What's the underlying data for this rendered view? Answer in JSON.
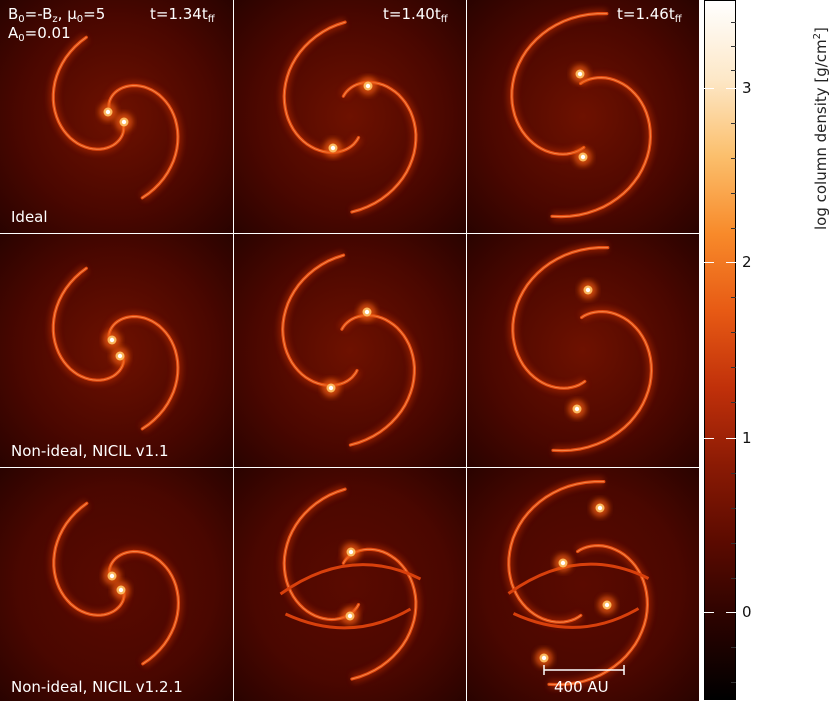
{
  "panels": {
    "row_labels": [
      "Ideal",
      "Non-ideal, NICIL v1.1",
      "Non-ideal, NICIL v1.2.1"
    ],
    "times": [
      {
        "base": "t=1.34t",
        "sub": "ff"
      },
      {
        "base": "t=1.40t",
        "sub": "ff"
      },
      {
        "base": "t=1.46t",
        "sub": "ff"
      }
    ],
    "params_line1": {
      "a": "B",
      "a_sub": "0",
      "b": "=-B",
      "b_sub": "z",
      "c": ", μ",
      "c_sub": "0",
      "d": "=5"
    },
    "params_line2": {
      "a": "A",
      "a_sub": "0",
      "b": "=0.01"
    },
    "scale_bar_label": "400 AU"
  },
  "colorbar": {
    "label_main": "log column density [g/cm",
    "label_sup": "2",
    "label_end": "]",
    "ticks": [
      "3",
      "2",
      "1",
      "0"
    ],
    "colormap": [
      "#000000",
      "#2a0300",
      "#5a0a00",
      "#8a1a04",
      "#c0300a",
      "#e75a14",
      "#f88a2a",
      "#fbbf6c",
      "#fde8c8",
      "#ffffff"
    ]
  }
}
